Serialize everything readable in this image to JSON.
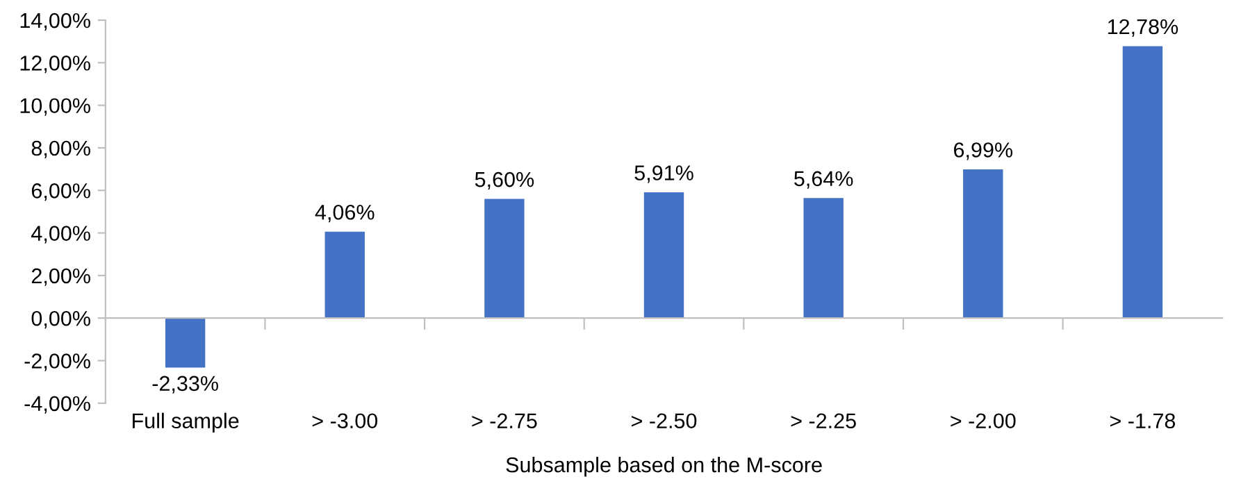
{
  "chart_data": {
    "type": "bar",
    "xlabel": "Subsample based on the M-score",
    "categories": [
      "Full sample",
      "> -3.00",
      "> -2.75",
      "> -2.50",
      "> -2.25",
      "> -2.00",
      "> -1.78"
    ],
    "values": [
      -2.33,
      4.06,
      5.6,
      5.91,
      5.64,
      6.99,
      12.78
    ],
    "value_labels": [
      "-2,33%",
      "4,06%",
      "5,60%",
      "5,91%",
      "5,64%",
      "6,99%",
      "12,78%"
    ],
    "color": "#4472c4",
    "ylim": [
      -4,
      14
    ],
    "yticks": [
      {
        "value": -4,
        "label": "-4,00%"
      },
      {
        "value": -2,
        "label": "-2,00%"
      },
      {
        "value": 0,
        "label": "0,00%"
      },
      {
        "value": 2,
        "label": "2,00%"
      },
      {
        "value": 4,
        "label": "4,00%"
      },
      {
        "value": 6,
        "label": "6,00%"
      },
      {
        "value": 8,
        "label": "8,00%"
      },
      {
        "value": 10,
        "label": "10,00%"
      },
      {
        "value": 12,
        "label": "12,00%"
      },
      {
        "value": 14,
        "label": "14,00%"
      }
    ],
    "legend": false
  }
}
